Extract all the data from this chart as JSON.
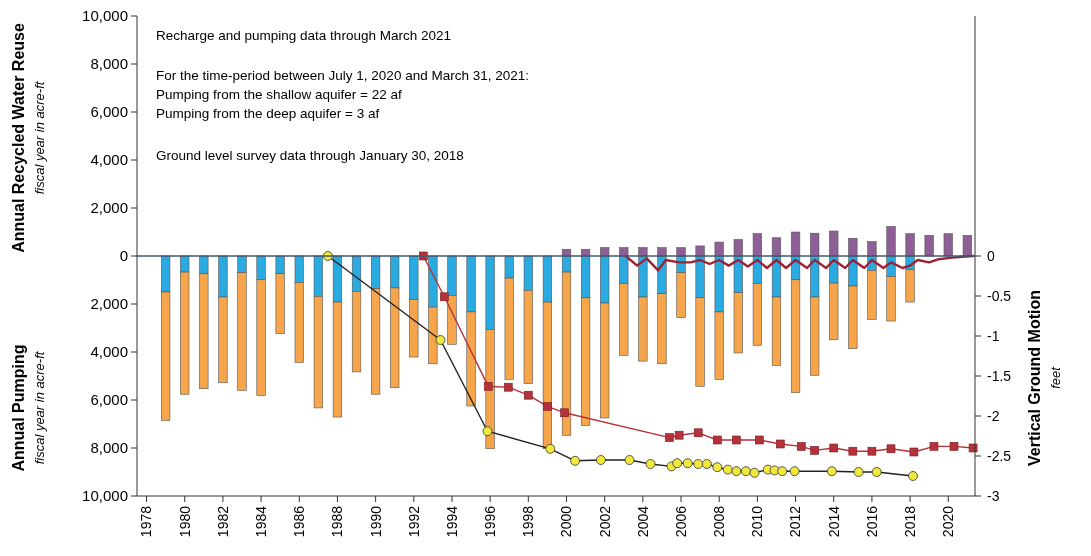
{
  "chart_data": {
    "type": "bar",
    "stacked": true,
    "ylabel": "Annual Recycled Water Reuse\nfiscal year in acre-ft",
    "y2label": "Vertical Ground Motion\nfeet",
    "annotations": [
      "Recharge and pumping data through March 2021",
      "For the time-period between July 1, 2020 and March 31, 2021:",
      "Pumping from the shallow aquifer = 22 af",
      "Pumping from the deep aquifer = 3 af",
      "Ground level survey data through January 30, 2018",
      "Annual Pumping\nfiscal year in acre-ft"
    ],
    "x": [
      1979,
      1980,
      1981,
      1982,
      1983,
      1984,
      1985,
      1986,
      1987,
      1988,
      1989,
      1990,
      1991,
      1992,
      1993,
      1994,
      1995,
      1996,
      1997,
      1998,
      1999,
      2000,
      2001,
      2002,
      2003,
      2004,
      2005,
      2006,
      2007,
      2008,
      2009,
      2010,
      2011,
      2012,
      2013,
      2014,
      2015,
      2016,
      2017,
      2018,
      2019,
      2020,
      2021
    ],
    "xlim": [
      1977.5,
      2021.4
    ],
    "xticks": [
      1978,
      1980,
      1982,
      1984,
      1986,
      1988,
      1990,
      1992,
      1994,
      1996,
      1998,
      2000,
      2002,
      2004,
      2006,
      2008,
      2010,
      2012,
      2014,
      2016,
      2018,
      2020
    ],
    "ylim": [
      -10000,
      10000
    ],
    "yticks": [
      {
        "value": -10000,
        "label": "10,000"
      },
      {
        "value": -8000,
        "label": "8,000"
      },
      {
        "value": -6000,
        "label": "6,000"
      },
      {
        "value": -4000,
        "label": "4,000"
      },
      {
        "value": -2000,
        "label": "2,000"
      },
      0,
      {
        "value": 2000,
        "label": "2,000"
      },
      {
        "value": 4000,
        "label": "4,000"
      },
      {
        "value": 6000,
        "label": "6,000"
      },
      {
        "value": 8000,
        "label": "8,000"
      },
      {
        "value": 10000,
        "label": "10,000"
      }
    ],
    "y2lim": [
      -3,
      3
    ],
    "y2ticks": [
      0,
      -0.5,
      -1,
      -1.5,
      -2,
      -2.5,
      -3
    ],
    "grid": false,
    "ref_lines": [
      {
        "axis": "y",
        "value": 0,
        "color": "#3d5a73"
      }
    ],
    "series": [
      {
        "color": "#29aae1",
        "values": [
          -1500,
          -670,
          -740,
          -1710,
          -690,
          -990,
          -740,
          -1110,
          -1680,
          -1920,
          -1470,
          -1360,
          -1330,
          -1820,
          -2130,
          -1640,
          -2330,
          -3060,
          -920,
          -1430,
          -1920,
          -670,
          -1740,
          -1960,
          -1150,
          -1710,
          -1570,
          -690,
          -1740,
          -2330,
          -1530,
          -1150,
          -1710,
          -990,
          -1710,
          -1130,
          -1250,
          -600,
          -850,
          -570,
          null,
          null,
          null
        ]
      },
      {
        "color": "#f7a54a",
        "values": [
          -5350,
          -5090,
          -4790,
          -3570,
          -4910,
          -4820,
          -2500,
          -3330,
          -4650,
          -4790,
          -3360,
          -4400,
          -4160,
          -2390,
          -2360,
          -2040,
          -3920,
          -4970,
          -4220,
          -3890,
          -6110,
          -6800,
          -5320,
          -4790,
          -2990,
          -2670,
          -2920,
          -1880,
          -3690,
          -2810,
          -2510,
          -2570,
          -2850,
          -4700,
          -3260,
          -2360,
          -2610,
          -2040,
          -1860,
          -1350,
          null,
          null,
          null
        ]
      },
      {
        "color": "#8e5f96",
        "values": [
          null,
          null,
          null,
          null,
          null,
          null,
          null,
          null,
          null,
          null,
          null,
          null,
          null,
          null,
          null,
          null,
          null,
          null,
          null,
          null,
          null,
          280,
          280,
          350,
          350,
          350,
          350,
          350,
          420,
          580,
          690,
          930,
          760,
          1000,
          950,
          1040,
          740,
          600,
          1230,
          930,
          860,
          930,
          860
        ]
      },
      {
        "type": "line",
        "axis": "y2",
        "color": "#9b2335",
        "marker": "none",
        "x": [
          2003.1,
          2003.7,
          2004.2,
          2004.8,
          2005.2,
          2005.9,
          2006.5,
          2007.0,
          2007.5,
          2008.0,
          2008.5,
          2009.0,
          2009.5,
          2010.0,
          2010.5,
          2011.0,
          2011.5,
          2012.0,
          2012.6,
          2013.0,
          2013.6,
          2014.0,
          2014.6,
          2015.0,
          2015.6,
          2016.0,
          2016.6,
          2017.0,
          2017.6,
          2018.0,
          2018.4,
          2019.0,
          2019.5,
          2020.2,
          2021.3
        ],
        "values": [
          0,
          -0.12,
          -0.03,
          -0.18,
          -0.05,
          -0.08,
          -0.08,
          -0.05,
          -0.1,
          -0.05,
          -0.12,
          -0.05,
          -0.13,
          -0.05,
          -0.15,
          -0.05,
          -0.15,
          -0.05,
          -0.15,
          -0.05,
          -0.15,
          -0.05,
          -0.15,
          -0.05,
          -0.15,
          -0.05,
          -0.15,
          -0.08,
          -0.15,
          -0.12,
          -0.05,
          -0.08,
          -0.04,
          -0.02,
          0
        ]
      },
      {
        "type": "line",
        "axis": "y2",
        "color": "#b5323a",
        "marker": "square",
        "x": [
          1992.5,
          1993.6,
          1995.9,
          1996.95,
          1998.0,
          1999.0,
          1999.9,
          2005.4,
          2005.9,
          2006.9,
          2007.9,
          2008.9,
          2010.1,
          2011.2,
          2012.3,
          2013.0,
          2014.0,
          2015.0,
          2016.0,
          2017.0,
          2018.2,
          2019.25,
          2020.3,
          2021.3
        ],
        "values": [
          0,
          -0.51,
          -1.63,
          -1.64,
          -1.74,
          -1.88,
          -1.96,
          -2.27,
          -2.24,
          -2.21,
          -2.3,
          -2.3,
          -2.3,
          -2.35,
          -2.38,
          -2.43,
          -2.4,
          -2.44,
          -2.44,
          -2.41,
          -2.45,
          -2.38,
          -2.38,
          -2.4
        ]
      },
      {
        "type": "line",
        "axis": "y2",
        "color": "#f0e83c",
        "marker": "circle",
        "x": [
          1987.5,
          1993.4,
          1995.86,
          1999.15,
          2000.45,
          2001.8,
          2003.3,
          2004.4,
          2005.5,
          2005.8,
          2006.35,
          2006.9,
          2007.35,
          2007.9,
          2008.45,
          2008.9,
          2009.4,
          2009.85,
          2010.55,
          2010.9,
          2011.3,
          2011.95,
          2013.9,
          2015.3,
          2016.25,
          2018.15
        ],
        "values": [
          0,
          -1.05,
          -2.19,
          -2.41,
          -2.56,
          -2.55,
          -2.55,
          -2.6,
          -2.63,
          -2.59,
          -2.59,
          -2.6,
          -2.6,
          -2.64,
          -2.67,
          -2.69,
          -2.69,
          -2.71,
          -2.67,
          -2.68,
          -2.69,
          -2.69,
          -2.69,
          -2.7,
          -2.7,
          -2.75
        ]
      }
    ]
  }
}
